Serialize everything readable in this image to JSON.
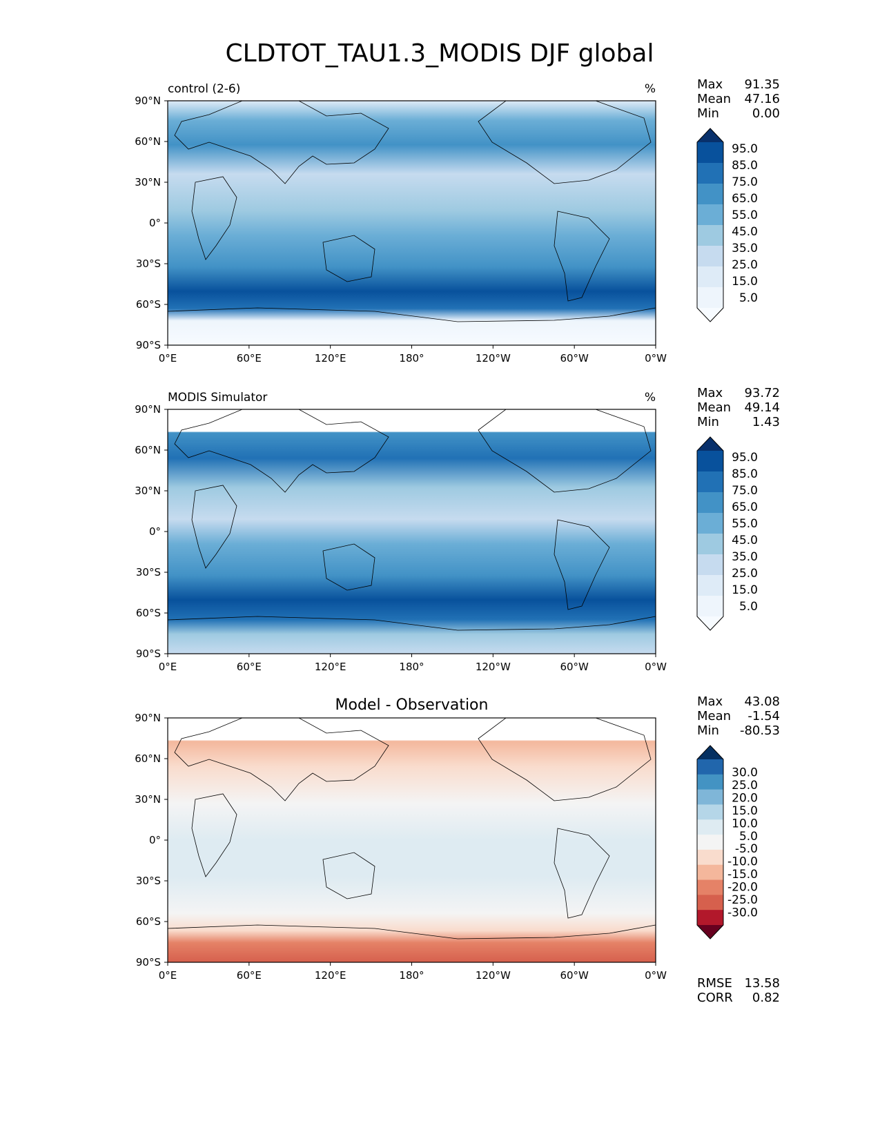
{
  "figure": {
    "title": "CLDTOT_TAU1.3_MODIS DJF global"
  },
  "chart_data": [
    {
      "type": "heatmap",
      "title": "control (2-6)",
      "units": "%",
      "stats": {
        "max_label": "Max",
        "max": "91.35",
        "mean_label": "Mean",
        "mean": "47.16",
        "min_label": "Min",
        "min": "0.00"
      },
      "colorbar_ticks": [
        "95.0",
        "85.0",
        "75.0",
        "65.0",
        "55.0",
        "45.0",
        "35.0",
        "25.0",
        "15.0",
        "5.0"
      ],
      "colorbar_colors": [
        "#08306b",
        "#08519c",
        "#2171b5",
        "#4292c6",
        "#6baed6",
        "#9ecae1",
        "#c6dbef",
        "#deebf7",
        "#eef5fc",
        "#f7fbff"
      ],
      "x_ticks": [
        "0°E",
        "60°E",
        "120°E",
        "180°",
        "120°W",
        "60°W",
        "0°W"
      ],
      "y_ticks": [
        "90°N",
        "60°N",
        "30°N",
        "0°",
        "30°S",
        "60°S",
        "90°S"
      ],
      "xlim": [
        0,
        360
      ],
      "ylim": [
        -90,
        90
      ]
    },
    {
      "type": "heatmap",
      "title": "MODIS Simulator",
      "units": "%",
      "stats": {
        "max_label": "Max",
        "max": "93.72",
        "mean_label": "Mean",
        "mean": "49.14",
        "min_label": "Min",
        "min": "1.43"
      },
      "colorbar_ticks": [
        "95.0",
        "85.0",
        "75.0",
        "65.0",
        "55.0",
        "45.0",
        "35.0",
        "25.0",
        "15.0",
        "5.0"
      ],
      "colorbar_colors": [
        "#08306b",
        "#08519c",
        "#2171b5",
        "#4292c6",
        "#6baed6",
        "#9ecae1",
        "#c6dbef",
        "#deebf7",
        "#eef5fc",
        "#f7fbff"
      ],
      "x_ticks": [
        "0°E",
        "60°E",
        "120°E",
        "180°",
        "120°W",
        "60°W",
        "0°W"
      ],
      "y_ticks": [
        "90°N",
        "60°N",
        "30°N",
        "0°",
        "30°S",
        "60°S",
        "90°S"
      ],
      "xlim": [
        0,
        360
      ],
      "ylim": [
        -90,
        90
      ]
    },
    {
      "type": "heatmap",
      "title": "Model - Observation",
      "units": "",
      "stats": {
        "max_label": "Max",
        "max": "43.08",
        "mean_label": "Mean",
        "mean": "-1.54",
        "min_label": "Min",
        "min": "-80.53"
      },
      "extra_stats": {
        "rmse_label": "RMSE",
        "rmse": "13.58",
        "corr_label": "CORR",
        "corr": "0.82"
      },
      "colorbar_ticks": [
        "30.0",
        "25.0",
        "20.0",
        "15.0",
        "10.0",
        "5.0",
        "-5.0",
        "-10.0",
        "-15.0",
        "-20.0",
        "-25.0",
        "-30.0"
      ],
      "colorbar_colors": [
        "#053061",
        "#2166ac",
        "#4393c3",
        "#7fb6d8",
        "#b5d6e8",
        "#deebf2",
        "#f4f4f4",
        "#f9dccd",
        "#f4b79c",
        "#e58267",
        "#d6604d",
        "#b2182b",
        "#67001f"
      ],
      "x_ticks": [
        "0°E",
        "60°E",
        "120°E",
        "180°",
        "120°W",
        "60°W",
        "0°W"
      ],
      "y_ticks": [
        "90°N",
        "60°N",
        "30°N",
        "0°",
        "30°S",
        "60°S",
        "90°S"
      ],
      "xlim": [
        0,
        360
      ],
      "ylim": [
        -90,
        90
      ]
    }
  ]
}
